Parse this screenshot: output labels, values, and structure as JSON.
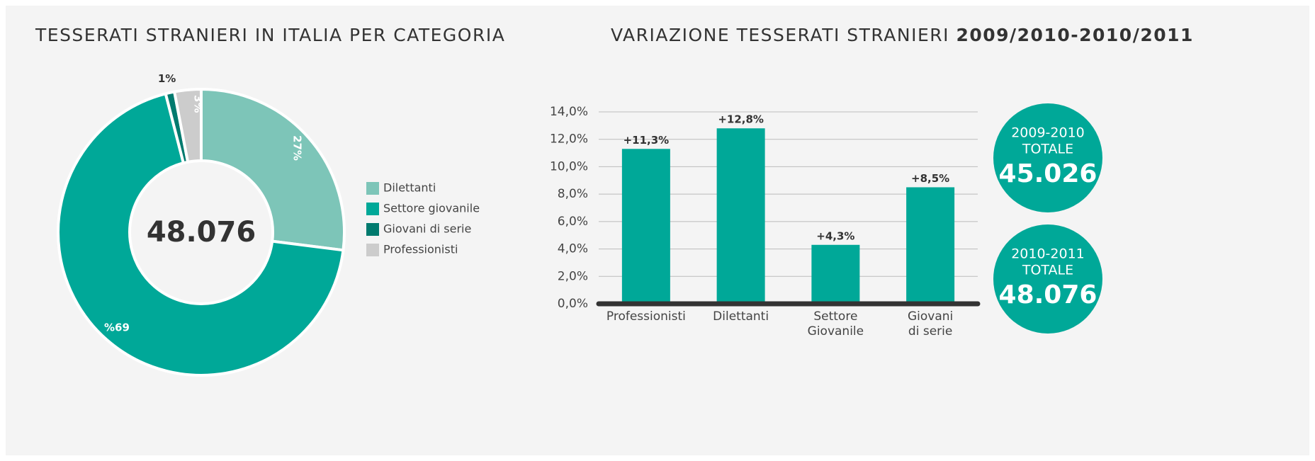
{
  "chart_data": [
    {
      "type": "pie",
      "title": "TESSERATI STRANIERI IN ITALIA PER CATEGORIA",
      "categories": [
        "Dilettanti",
        "Settore giovanile",
        "Giovani di serie",
        "Professionisti"
      ],
      "values": [
        27,
        69,
        1,
        3
      ],
      "value_labels": [
        "27%",
        "%69",
        "1%",
        "3%"
      ],
      "colors": [
        "#7dc5b8",
        "#00a898",
        "#007a6e",
        "#cccccc"
      ],
      "center_label": "48.076",
      "legend": "right"
    },
    {
      "type": "bar",
      "title": "VARIAZIONE TESSERATI STRANIERI",
      "title_bold": "2009/2010-2010/2011",
      "categories": [
        [
          "Professionisti"
        ],
        [
          "Dilettanti"
        ],
        [
          "Settore",
          "Giovanile"
        ],
        [
          "Giovani",
          "di serie"
        ]
      ],
      "values": [
        11.3,
        12.8,
        4.3,
        8.5
      ],
      "value_labels": [
        "+11,3%",
        "+12,8%",
        "+4,3%",
        "+8,5%"
      ],
      "color": "#00a898",
      "ylim": [
        0,
        14
      ],
      "yticks": [
        {
          "value": 0,
          "label": "0,0%"
        },
        {
          "value": 2,
          "label": "2,0%"
        },
        {
          "value": 4,
          "label": "4,0%"
        },
        {
          "value": 6,
          "label": "6,0%"
        },
        {
          "value": 8,
          "label": "8,0%"
        },
        {
          "value": 10,
          "label": "10,0%"
        },
        {
          "value": 12,
          "label": "12,0%"
        },
        {
          "value": 14,
          "label": "14,0%"
        }
      ],
      "grid": true
    }
  ],
  "totals": [
    {
      "period": "2009-2010",
      "label": "TOTALE",
      "value": "45.026"
    },
    {
      "period": "2010-2011",
      "label": "TOTALE",
      "value": "48.076"
    }
  ]
}
